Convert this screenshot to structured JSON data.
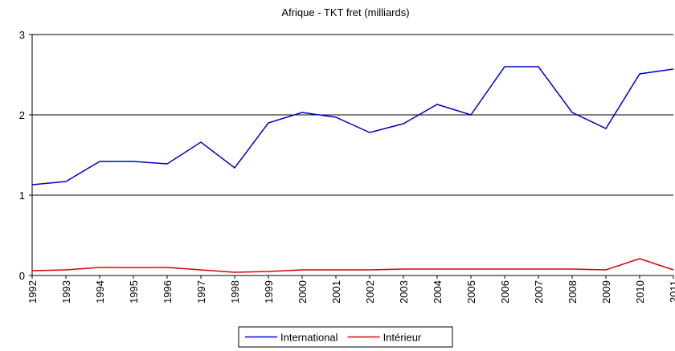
{
  "chart_data": {
    "type": "line",
    "title": "Afrique - TKT fret (milliards)",
    "categories": [
      "1992",
      "1993",
      "1994",
      "1995",
      "1996",
      "1997",
      "1998",
      "1999",
      "2000",
      "2001",
      "2002",
      "2003",
      "2004",
      "2005",
      "2006",
      "2007",
      "2008",
      "2009",
      "2010",
      "2011"
    ],
    "series": [
      {
        "name": "International",
        "color": "#0000cc",
        "values": [
          1.13,
          1.17,
          1.42,
          1.42,
          1.39,
          1.66,
          1.34,
          1.9,
          2.03,
          1.97,
          1.78,
          1.89,
          2.13,
          2.0,
          2.6,
          2.6,
          2.03,
          1.83,
          2.51,
          2.57
        ]
      },
      {
        "name": "Intérieur",
        "color": "#dd0000",
        "values": [
          0.06,
          0.07,
          0.1,
          0.1,
          0.1,
          0.07,
          0.04,
          0.05,
          0.07,
          0.07,
          0.07,
          0.08,
          0.08,
          0.08,
          0.08,
          0.08,
          0.08,
          0.07,
          0.21,
          0.07
        ]
      }
    ],
    "ylim": [
      0,
      3
    ],
    "yticks": [
      0,
      1,
      2,
      3
    ],
    "grid": true,
    "legend": "bottom"
  }
}
